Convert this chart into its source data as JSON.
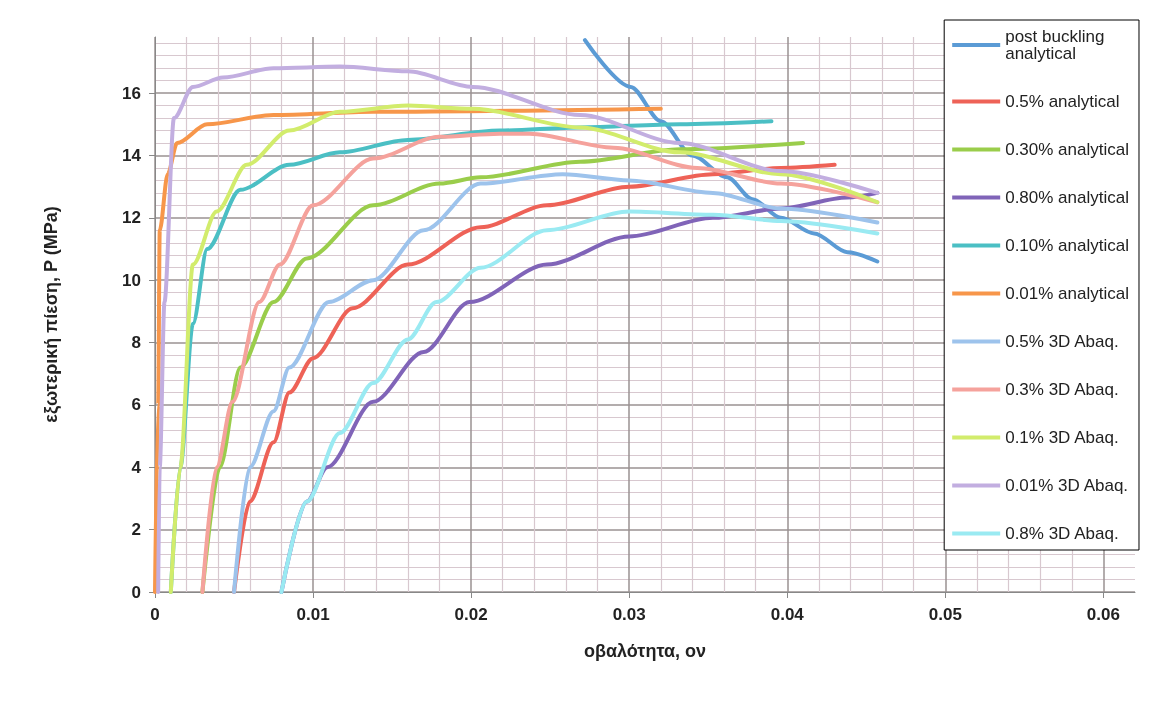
{
  "chart_data": {
    "type": "line",
    "xlabel": "οβαλότητα, ον",
    "ylabel": "εξωτερική πίεση, P (MPa)",
    "xlim": [
      0,
      0.062
    ],
    "ylim": [
      0,
      17.8
    ],
    "xticks": [
      0,
      0.01,
      0.02,
      0.03,
      0.04,
      0.05,
      0.06
    ],
    "yticks": [
      0,
      2,
      4,
      6,
      8,
      10,
      12,
      14,
      16
    ],
    "grid": true,
    "legend": "top right",
    "marker": "none",
    "line_style": "solid",
    "series": [
      {
        "name": "post buckling analytical",
        "color": "#5b9bd5",
        "x": [
          0.0272,
          0.0301,
          0.032,
          0.034,
          0.0362,
          0.0378,
          0.0396,
          0.0417,
          0.0438,
          0.0457
        ],
        "values": [
          17.7,
          16.2,
          15.1,
          14.0,
          13.3,
          12.6,
          12.0,
          11.5,
          10.9,
          10.6
        ]
      },
      {
        "name": "0.5% analytical",
        "color": "#ee6257",
        "x": [
          0.005,
          0.006,
          0.0075,
          0.0085,
          0.01,
          0.0125,
          0.016,
          0.0206,
          0.0248,
          0.03,
          0.0353,
          0.0396,
          0.043
        ],
        "values": [
          0,
          2.9,
          4.8,
          6.4,
          7.5,
          9.1,
          10.5,
          11.7,
          12.4,
          13.0,
          13.4,
          13.6,
          13.7
        ]
      },
      {
        "name": "0.30% analytical",
        "color": "#9acd4b",
        "x": [
          0.003,
          0.0041,
          0.0054,
          0.0075,
          0.0096,
          0.0138,
          0.018,
          0.0206,
          0.0269,
          0.0332,
          0.041
        ],
        "values": [
          0,
          4.0,
          7.2,
          9.3,
          10.7,
          12.4,
          13.1,
          13.3,
          13.8,
          14.2,
          14.4
        ]
      },
      {
        "name": "0.80% analytical",
        "color": "#8064b8",
        "x": [
          0.008,
          0.0096,
          0.0109,
          0.0138,
          0.017,
          0.0199,
          0.0248,
          0.03,
          0.0353,
          0.0396,
          0.0438,
          0.0457
        ],
        "values": [
          0,
          2.9,
          4.0,
          6.1,
          7.7,
          9.3,
          10.5,
          11.4,
          12.0,
          12.3,
          12.65,
          12.8
        ]
      },
      {
        "name": "0.10% analytical",
        "color": "#4bbfc4",
        "x": [
          0.001,
          0.0016,
          0.0024,
          0.0033,
          0.0054,
          0.0085,
          0.0117,
          0.016,
          0.0218,
          0.0269,
          0.0332,
          0.039
        ],
        "values": [
          0,
          4.0,
          8.6,
          11.0,
          12.9,
          13.7,
          14.1,
          14.5,
          14.8,
          14.9,
          15.0,
          15.1
        ]
      },
      {
        "name": "0.01% analytical",
        "color": "#f7964a",
        "x": [
          0,
          0.0002,
          0.0003,
          0.0008,
          0.0014,
          0.0033,
          0.0075,
          0.0138,
          0.032
        ],
        "values": [
          0,
          6,
          11.6,
          13.4,
          14.4,
          15.0,
          15.3,
          15.4,
          15.5
        ]
      },
      {
        "name": "0.5% 3D Abaq.",
        "color": "#9dc3ec",
        "x": [
          0.005,
          0.006,
          0.0075,
          0.0085,
          0.011,
          0.0138,
          0.017,
          0.0206,
          0.0258,
          0.03,
          0.0353,
          0.0396,
          0.0457
        ],
        "values": [
          0,
          4.0,
          5.8,
          7.2,
          9.3,
          10.0,
          11.6,
          13.1,
          13.4,
          13.2,
          12.8,
          12.3,
          11.85
        ]
      },
      {
        "name": "0.3% 3D Abaq.",
        "color": "#f5a29c",
        "x": [
          0.003,
          0.0039,
          0.0049,
          0.0066,
          0.0079,
          0.01,
          0.0138,
          0.018,
          0.0218,
          0.0237,
          0.029,
          0.0343,
          0.0396,
          0.0457
        ],
        "values": [
          0,
          4.0,
          6.1,
          9.3,
          10.5,
          12.4,
          13.9,
          14.6,
          14.7,
          14.7,
          14.25,
          13.6,
          13.1,
          12.5
        ]
      },
      {
        "name": "0.1% 3D Abaq.",
        "color": "#d2ec6c",
        "x": [
          0.001,
          0.0016,
          0.0024,
          0.0039,
          0.0058,
          0.0085,
          0.0117,
          0.016,
          0.0201,
          0.0269,
          0.0332,
          0.0396,
          0.0457
        ],
        "values": [
          0,
          4.0,
          10.5,
          12.2,
          13.7,
          14.8,
          15.4,
          15.6,
          15.5,
          14.9,
          14.1,
          13.4,
          12.5
        ]
      },
      {
        "name": "0.01% 3D Abaq.",
        "color": "#c2aee0",
        "x": [
          0.0002,
          0.0003,
          0.0006,
          0.0012,
          0.0024,
          0.0043,
          0.0075,
          0.0117,
          0.016,
          0.0201,
          0.0269,
          0.0332,
          0.0396,
          0.0457
        ],
        "values": [
          0,
          4.0,
          9.3,
          15.2,
          16.2,
          16.5,
          16.8,
          16.85,
          16.7,
          16.2,
          15.3,
          14.4,
          13.5,
          12.8
        ]
      },
      {
        "name": "0.8% 3D Abaq.",
        "color": "#9aeaf2",
        "x": [
          0.008,
          0.0096,
          0.0117,
          0.0138,
          0.016,
          0.0178,
          0.0206,
          0.0248,
          0.03,
          0.0353,
          0.0396,
          0.0457
        ],
        "values": [
          0,
          2.9,
          5.1,
          6.7,
          8.1,
          9.3,
          10.4,
          11.6,
          12.2,
          12.1,
          11.9,
          11.5
        ]
      }
    ]
  }
}
